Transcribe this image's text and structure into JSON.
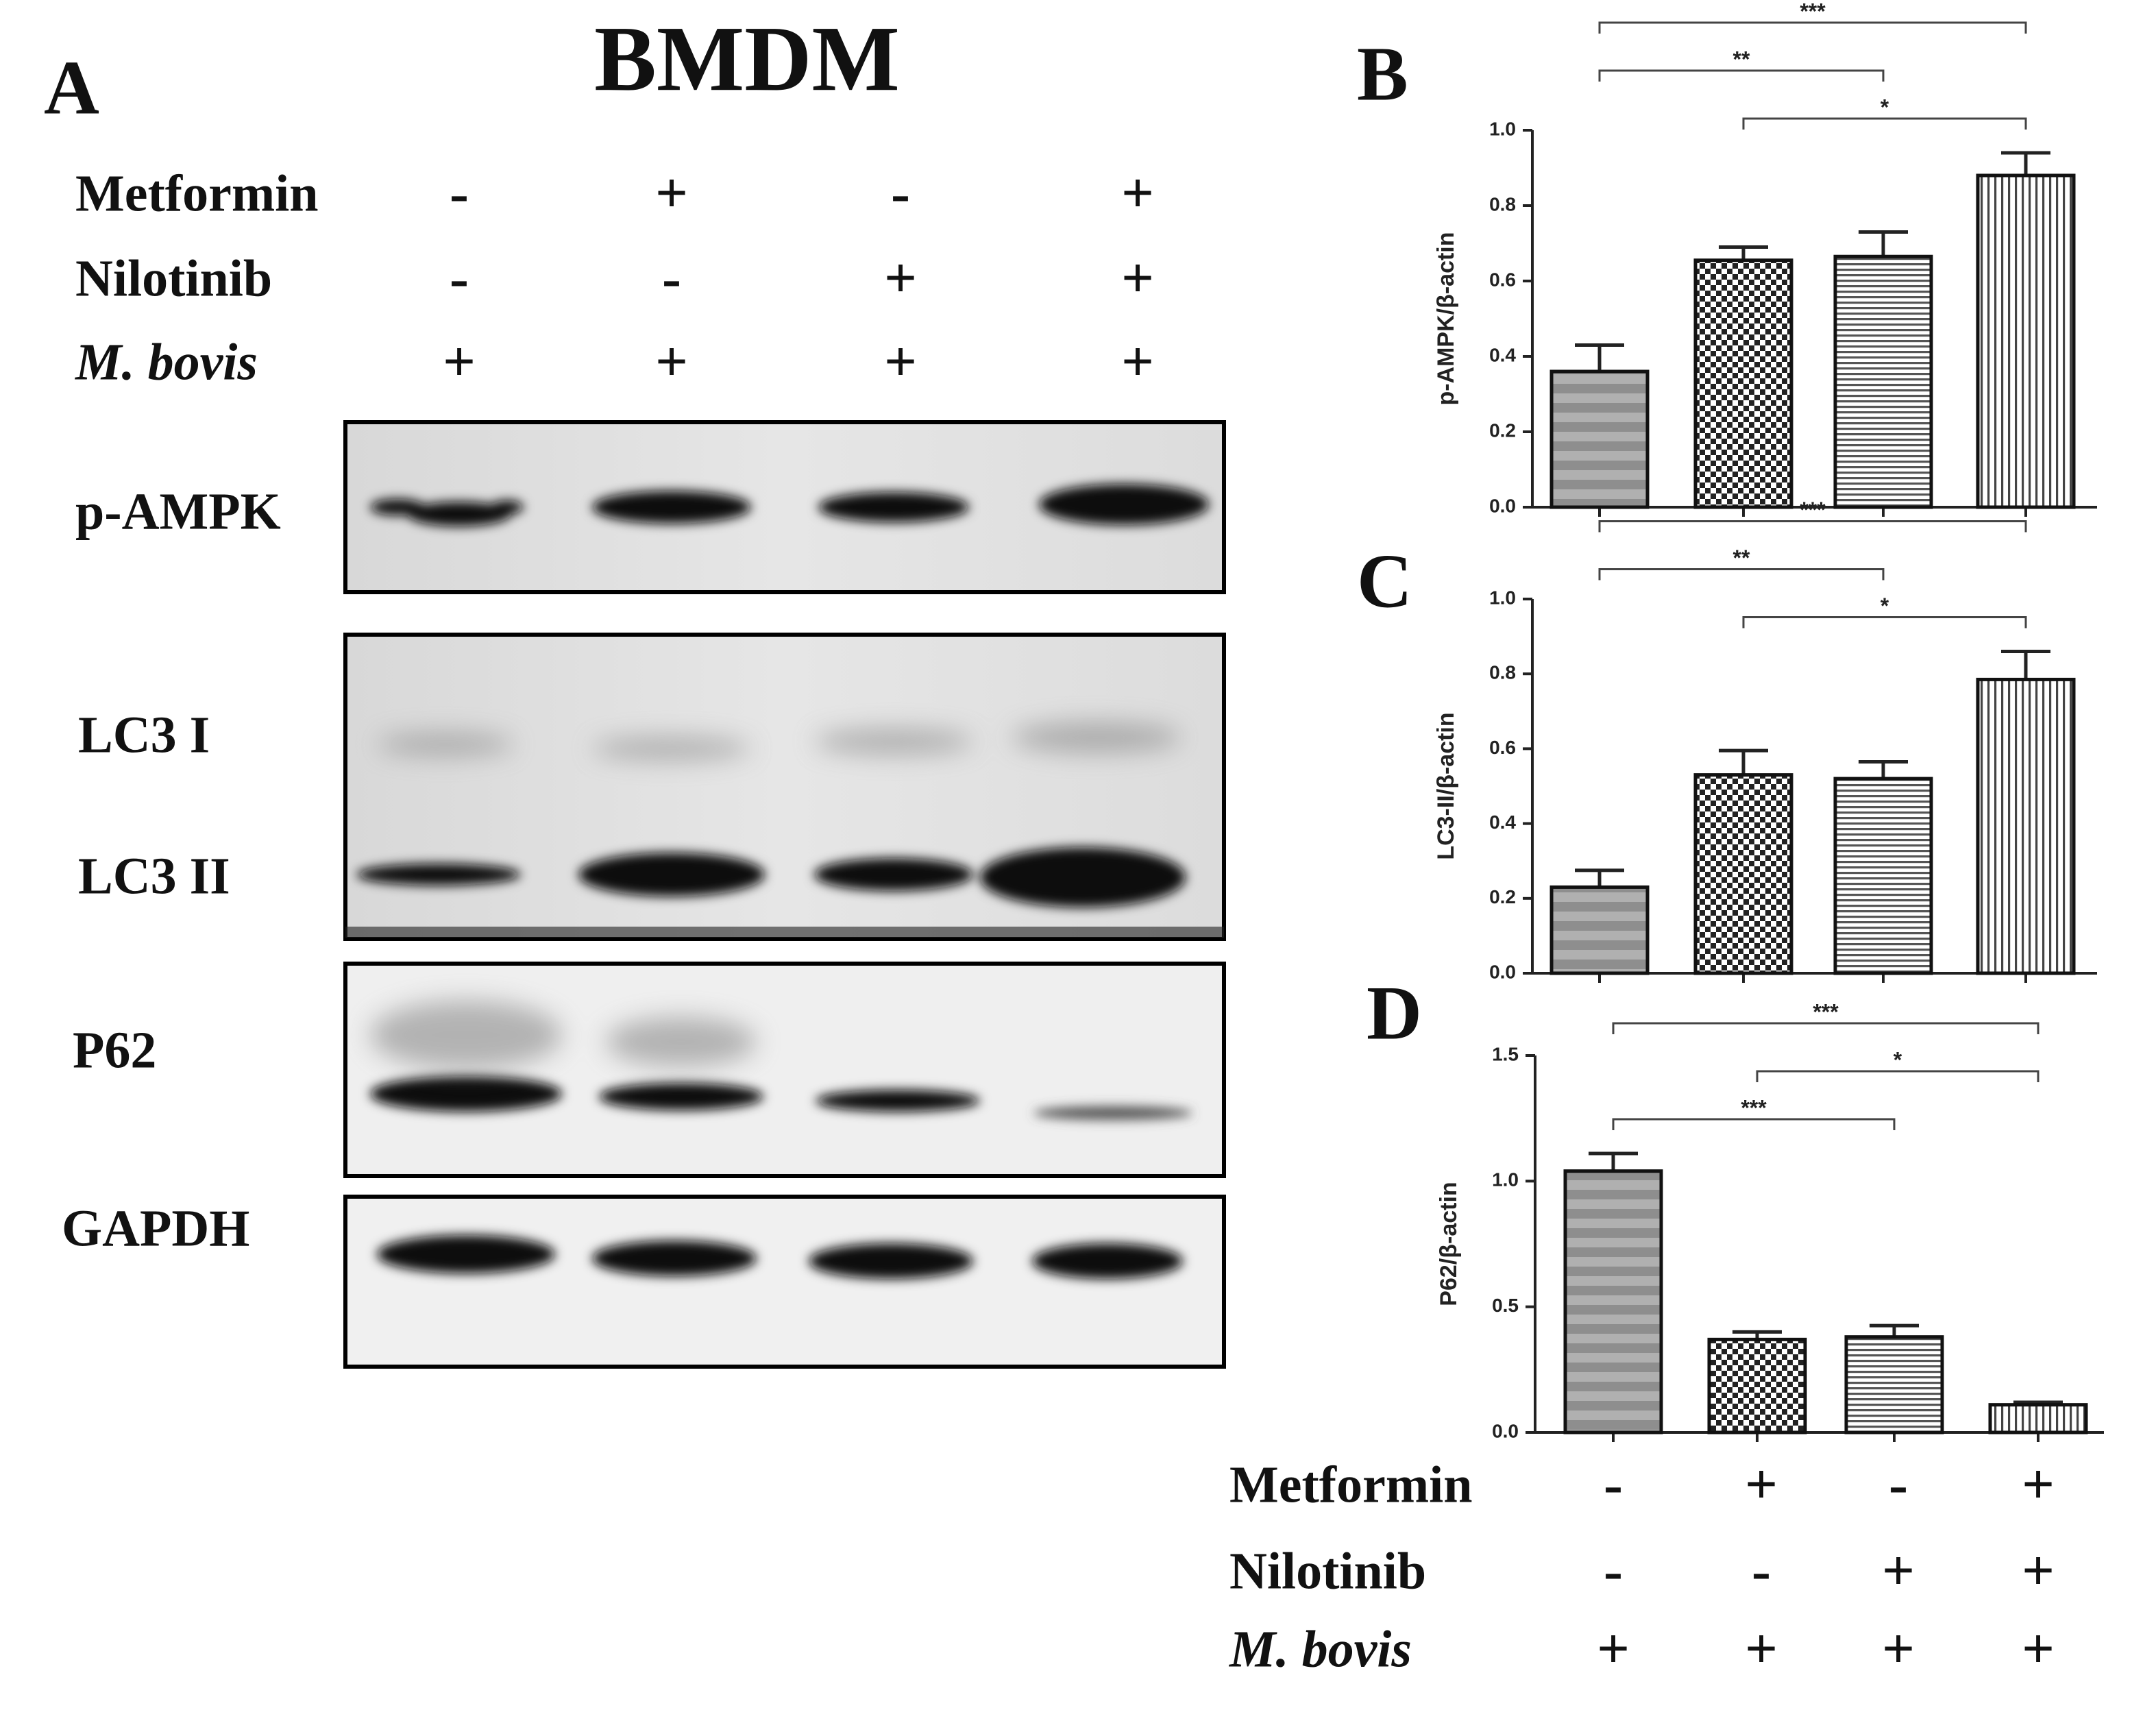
{
  "panel_a": {
    "letter": "A",
    "title": "BMDM",
    "conditions": [
      {
        "name": "Metformin",
        "signs": [
          "-",
          "+",
          "-",
          "+"
        ]
      },
      {
        "name": "Nilotinib",
        "signs": [
          "-",
          "-",
          "+",
          "+"
        ]
      },
      {
        "name": "M. bovis",
        "signs": [
          "+",
          "+",
          "+",
          "+"
        ]
      }
    ],
    "bands": [
      "p-AMPK",
      "LC3 I",
      "LC3 II",
      "P62",
      "GAPDH"
    ]
  },
  "chart_data": [
    {
      "type": "bar",
      "letter": "B",
      "ylabel": "p-AMPK/β-actin",
      "values": [
        0.36,
        0.655,
        0.665,
        0.88
      ],
      "errors": [
        0.07,
        0.035,
        0.065,
        0.06
      ],
      "ylim": [
        0,
        1.0
      ],
      "yticks": [
        {
          "value": 0,
          "label": "0.0"
        },
        0.2,
        0.4,
        0.6,
        0.8,
        {
          "value": 1.0,
          "label": "1.0"
        }
      ],
      "significance": [
        {
          "between": [
            0,
            3
          ],
          "label": "***"
        },
        {
          "between": [
            1,
            3
          ],
          "label": "*"
        },
        {
          "between": [
            0,
            2
          ],
          "label": "**"
        }
      ]
    },
    {
      "type": "bar",
      "letter": "C",
      "ylabel": "LC3-II/β-actin",
      "values": [
        0.23,
        0.53,
        0.52,
        0.785
      ],
      "errors": [
        0.045,
        0.065,
        0.045,
        0.075
      ],
      "ylim": [
        0,
        1.0
      ],
      "yticks": [
        {
          "value": 0,
          "label": "0.0"
        },
        0.2,
        0.4,
        0.6,
        0.8,
        {
          "value": 1.0,
          "label": "1.0"
        }
      ],
      "significance": [
        {
          "between": [
            0,
            3
          ],
          "label": "***"
        },
        {
          "between": [
            1,
            3
          ],
          "label": "*"
        },
        {
          "between": [
            0,
            2
          ],
          "label": "**"
        }
      ]
    },
    {
      "type": "bar",
      "letter": "D",
      "ylabel": "P62/β-actin",
      "values": [
        1.04,
        0.37,
        0.38,
        0.11
      ],
      "errors": [
        0.07,
        0.03,
        0.045,
        0.01
      ],
      "ylim": [
        0,
        1.5
      ],
      "yticks": [
        {
          "value": 0,
          "label": "0.0"
        },
        0.5,
        {
          "value": 1.0,
          "label": "1.0"
        },
        1.5
      ],
      "significance": [
        {
          "between": [
            0,
            3
          ],
          "label": "***"
        },
        {
          "between": [
            0,
            2
          ],
          "label": "***"
        },
        {
          "between": [
            1,
            3
          ],
          "label": "*"
        }
      ]
    }
  ]
}
